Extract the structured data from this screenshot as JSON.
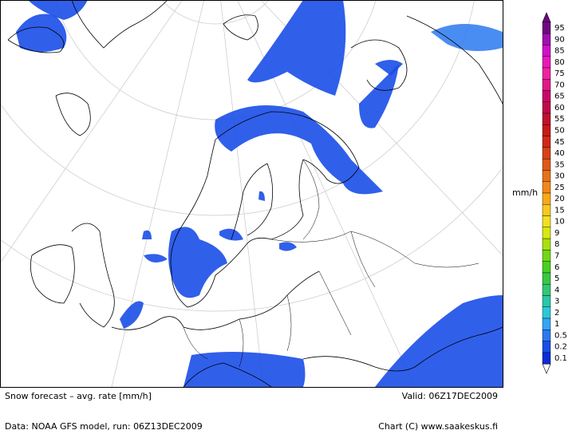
{
  "footer": {
    "title": "Snow forecast – avg. rate [mm/h]",
    "valid": "Valid: 06Z17DEC2009",
    "source": "Data: NOAA GFS model, run: 06Z13DEC2009",
    "credit": "Chart (C) www.saakeskus.fi"
  },
  "legend": {
    "unit": "mm/h",
    "levels": [
      95,
      90,
      85,
      80,
      75,
      70,
      65,
      60,
      55,
      50,
      45,
      40,
      35,
      30,
      25,
      20,
      15,
      10,
      9,
      8,
      7,
      6,
      5,
      4,
      3,
      2,
      1,
      0.5,
      0.2,
      0.1
    ],
    "colors": [
      "#700880",
      "#a010b0",
      "#d010c8",
      "#e818b8",
      "#f020a0",
      "#e01888",
      "#c80868",
      "#c00848",
      "#c01030",
      "#c81818",
      "#d02818",
      "#d84018",
      "#e05818",
      "#e87018",
      "#f08818",
      "#f8a818",
      "#f8c820",
      "#f0e020",
      "#d8e810",
      "#a8e010",
      "#70d810",
      "#48d020",
      "#38c840",
      "#30c870",
      "#28c8a8",
      "#2cc8d8",
      "#34a4f4",
      "#2a79f0",
      "#1a4ee8",
      "#0a2bd8"
    ]
  }
}
